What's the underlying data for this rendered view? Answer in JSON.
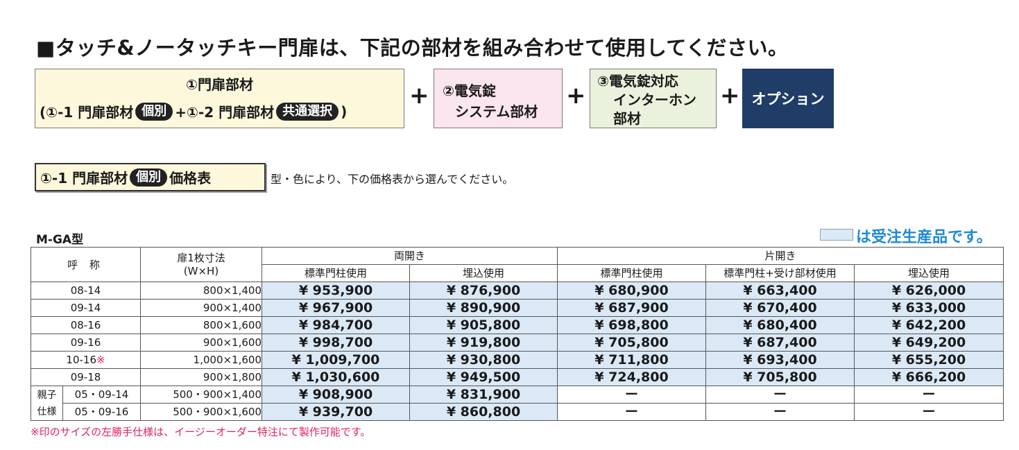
{
  "headline": "■タッチ&ノータッチキー門扉は、下記の部材を組み合わせて使用してください。",
  "parts": {
    "part1_title": "①門扉部材",
    "part1_open": "(①-1 門扉部材",
    "part1_pill1": "個別",
    "part1_mid": "+①-2 門扉部材",
    "part1_pill2": "共通選択",
    "part1_close": ")",
    "part2_line1": "②電気錠",
    "part2_line2": "システム部材",
    "part3_line1": "③電気錠対応",
    "part3_line2": "インターホン",
    "part3_line3": "部材",
    "part4": "オプション",
    "plus": "+"
  },
  "section": {
    "title_pre": "①-1 門扉部材",
    "title_pill": "個別",
    "title_post": "価格表",
    "note": "型・色により、下の価格表から選んでください。"
  },
  "model": "M-GA型",
  "legend": {
    "text": "は受注生産品です。",
    "color": "#dbe9f6"
  },
  "table": {
    "headers": {
      "name": "呼 称",
      "size_line1": "扉1枚寸法",
      "size_line2": "(W×H)",
      "double": "両開き",
      "single": "片開き",
      "std_post": "標準門柱使用",
      "embedded": "埋込使用",
      "std_post_receiver": "標準門柱+受け部材使用"
    },
    "rows": [
      {
        "name": "08-14",
        "size": "800×1,400",
        "d_std": "¥ 953,900",
        "d_emb": "¥ 876,900",
        "s_std": "¥ 680,900",
        "s_recv": "¥ 663,400",
        "s_emb": "¥ 626,000"
      },
      {
        "name": "09-14",
        "size": "900×1,400",
        "d_std": "¥ 967,900",
        "d_emb": "¥ 890,900",
        "s_std": "¥ 687,900",
        "s_recv": "¥ 670,400",
        "s_emb": "¥ 633,000"
      },
      {
        "name": "08-16",
        "size": "800×1,600",
        "d_std": "¥ 984,700",
        "d_emb": "¥ 905,800",
        "s_std": "¥ 698,800",
        "s_recv": "¥ 680,400",
        "s_emb": "¥ 642,200"
      },
      {
        "name": "09-16",
        "size": "900×1,600",
        "d_std": "¥ 998,700",
        "d_emb": "¥ 919,800",
        "s_std": "¥ 705,800",
        "s_recv": "¥ 687,400",
        "s_emb": "¥ 649,200"
      },
      {
        "name": "10-16",
        "mark": "※",
        "size": "1,000×1,600",
        "d_std": "¥ 1,009,700",
        "d_emb": "¥ 930,800",
        "s_std": "¥ 711,800",
        "s_recv": "¥ 693,400",
        "s_emb": "¥ 655,200"
      },
      {
        "name": "09-18",
        "size": "900×1,800",
        "d_std": "¥ 1,030,600",
        "d_emb": "¥ 949,500",
        "s_std": "¥ 724,800",
        "s_recv": "¥ 705,800",
        "s_emb": "¥ 666,200"
      }
    ],
    "group": {
      "label_line1": "親子",
      "label_line2": "仕様",
      "rows": [
        {
          "name": "05・09-14",
          "size": "500・900×1,400",
          "d_std": "¥ 908,900",
          "d_emb": "¥ 831,900",
          "s_std": "ー",
          "s_recv": "ー",
          "s_emb": "ー"
        },
        {
          "name": "05・09-16",
          "size": "500・900×1,600",
          "d_std": "¥ 939,700",
          "d_emb": "¥ 860,800",
          "s_std": "ー",
          "s_recv": "ー",
          "s_emb": "ー"
        }
      ]
    }
  },
  "footnote": "※印のサイズの左勝手仕様は、イージーオーダー特注にて製作可能です。"
}
